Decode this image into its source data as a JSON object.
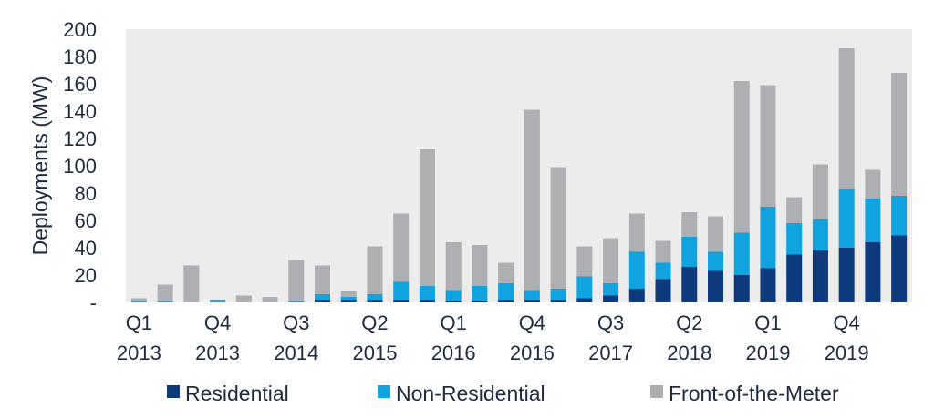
{
  "chart_data": {
    "type": "bar",
    "stacked": true,
    "ylabel": "Deployments (MW)",
    "ylim": [
      0,
      200
    ],
    "y_ticks": [
      {
        "value": 0,
        "label": "-"
      },
      {
        "value": 20,
        "label": "20"
      },
      {
        "value": 40,
        "label": "40"
      },
      {
        "value": 60,
        "label": "60"
      },
      {
        "value": 80,
        "label": "80"
      },
      {
        "value": 100,
        "label": "100"
      },
      {
        "value": 120,
        "label": "120"
      },
      {
        "value": 140,
        "label": "140"
      },
      {
        "value": 160,
        "label": "160"
      },
      {
        "value": 180,
        "label": "180"
      },
      {
        "value": 200,
        "label": "200"
      }
    ],
    "grid": false,
    "legend_position": "bottom",
    "categories": [
      "Q1 2013",
      "Q2 2013",
      "Q3 2013",
      "Q4 2013",
      "Q1 2014",
      "Q2 2014",
      "Q3 2014",
      "Q4 2014",
      "Q1 2015",
      "Q2 2015",
      "Q3 2015",
      "Q4 2015",
      "Q1 2016",
      "Q2 2016",
      "Q3 2016",
      "Q4 2016",
      "Q1 2017",
      "Q2 2017",
      "Q3 2017",
      "Q4 2017",
      "Q1 2018",
      "Q2 2018",
      "Q3 2018",
      "Q4 2018",
      "Q1 2019",
      "Q2 2019",
      "Q3 2019",
      "Q4 2019",
      "Q1 2020",
      "Q2 2020"
    ],
    "x_tick_labels": [
      {
        "index": 0,
        "line1": "Q1",
        "line2": "2013"
      },
      {
        "index": 3,
        "line1": "Q4",
        "line2": "2013"
      },
      {
        "index": 6,
        "line1": "Q3",
        "line2": "2014"
      },
      {
        "index": 9,
        "line1": "Q2",
        "line2": "2015"
      },
      {
        "index": 12,
        "line1": "Q1",
        "line2": "2016"
      },
      {
        "index": 15,
        "line1": "Q4",
        "line2": "2016"
      },
      {
        "index": 18,
        "line1": "Q3",
        "line2": "2017"
      },
      {
        "index": 21,
        "line1": "Q2",
        "line2": "2018"
      },
      {
        "index": 24,
        "line1": "Q1",
        "line2": "2019"
      },
      {
        "index": 27,
        "line1": "Q4",
        "line2": "2019"
      }
    ],
    "series": [
      {
        "name": "Residential",
        "color": "#0c3a7c",
        "values": [
          0,
          0,
          0,
          0,
          0,
          0,
          0,
          2,
          2,
          2,
          2,
          2,
          1,
          1,
          2,
          2,
          2,
          3,
          5,
          10,
          17,
          26,
          23,
          20,
          25,
          35,
          38,
          40,
          44,
          49
        ]
      },
      {
        "name": "Non-Residential",
        "color": "#10a3e0",
        "values": [
          1,
          1,
          0,
          2,
          0,
          0,
          1,
          4,
          2,
          4,
          13,
          10,
          8,
          11,
          12,
          7,
          8,
          16,
          9,
          27,
          12,
          22,
          14,
          31,
          45,
          23,
          23,
          43,
          32,
          29
        ]
      },
      {
        "name": "Front-of-the-Meter",
        "color": "#adafb2",
        "values": [
          2,
          12,
          27,
          0,
          5,
          4,
          30,
          21,
          4,
          35,
          50,
          100,
          35,
          30,
          15,
          132,
          89,
          22,
          33,
          28,
          16,
          18,
          26,
          111,
          89,
          19,
          40,
          103,
          21,
          90
        ]
      }
    ]
  }
}
